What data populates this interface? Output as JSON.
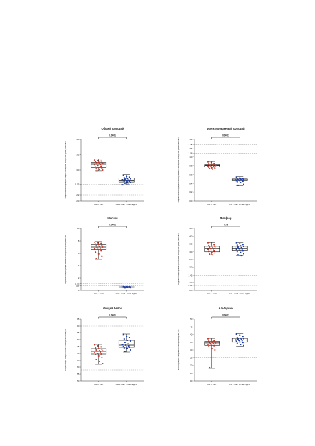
{
  "colors": {
    "group1": "#c0392b",
    "group2": "#1f3fa6",
    "axis": "#333333",
    "ref_line": "#9a9a9a"
  },
  "chart_data": [
    {
      "type": "box",
      "title": "Общий кальций",
      "ylabel": "Медиана концентрации общего кальция в сыворотке крови, ммоль/л",
      "categories": [
        "СН + CaP",
        "СН + CaP + Na2-ЭДТА"
      ],
      "ylim": [
        2.0,
        4.0
      ],
      "yticks": [
        "2.0",
        "2.2",
        "2.55",
        "3.0",
        "3.5",
        "4.0"
      ],
      "ref_lines": [
        2.2,
        2.55
      ],
      "pvalue": "0.0001",
      "series": [
        {
          "q1": 3.08,
          "median": 3.2,
          "q3": 3.26,
          "min": 2.98,
          "max": 3.36,
          "points": [
            3.33,
            3.31,
            3.3,
            3.28,
            3.26,
            3.25,
            3.24,
            3.22,
            3.21,
            3.2,
            3.19,
            3.17,
            3.15,
            3.12,
            3.1,
            3.08,
            3.06,
            3.04,
            3.02,
            3.0,
            2.98
          ]
        },
        {
          "q1": 2.62,
          "median": 2.66,
          "q3": 2.74,
          "min": 2.53,
          "max": 2.85,
          "points": [
            2.84,
            2.8,
            2.77,
            2.75,
            2.73,
            2.72,
            2.71,
            2.7,
            2.69,
            2.68,
            2.67,
            2.66,
            2.65,
            2.64,
            2.63,
            2.62,
            2.6,
            2.58,
            2.55,
            2.53
          ]
        }
      ]
    },
    {
      "type": "box",
      "title": "Ионизированный кальций",
      "ylabel": "Медиана концентрации ионизированного кальция в сыворотке крови, ммоль/л",
      "categories": [
        "СН + CaP",
        "СН + CaP + Na2-ЭДТА"
      ],
      "ylim": [
        0.0,
        1.4
      ],
      "yticks": [
        "0.0",
        "0.2",
        "0.4",
        "0.6",
        "0.8",
        "1.0",
        "1.08",
        "1.2",
        "1.28",
        "1.4"
      ],
      "ref_lines": [
        1.08,
        1.28
      ],
      "pvalue": "0.0001",
      "series": [
        {
          "q1": 0.77,
          "median": 0.8,
          "q3": 0.83,
          "min": 0.72,
          "max": 0.9,
          "points": [
            0.89,
            0.87,
            0.85,
            0.84,
            0.83,
            0.82,
            0.82,
            0.81,
            0.8,
            0.8,
            0.79,
            0.78,
            0.78,
            0.77,
            0.76,
            0.75,
            0.74,
            0.73,
            0.72
          ]
        },
        {
          "q1": 0.46,
          "median": 0.48,
          "q3": 0.5,
          "min": 0.35,
          "max": 0.55,
          "points": [
            0.54,
            0.52,
            0.51,
            0.5,
            0.5,
            0.49,
            0.49,
            0.48,
            0.48,
            0.47,
            0.47,
            0.46,
            0.46,
            0.45,
            0.44,
            0.42,
            0.38,
            0.36
          ]
        }
      ]
    },
    {
      "type": "box",
      "title": "Магния",
      "ylabel": "Медиана концентрации магния в сыворотке крови, ммоль/л",
      "categories": [
        "СН + CaP",
        "СН + CaP + Na2-ЭДТА"
      ],
      "ylim": [
        0,
        10
      ],
      "yticks": [
        "0",
        "0.7",
        "1.05",
        "2",
        "4",
        "6",
        "8",
        "10"
      ],
      "ref_lines": [
        0.7,
        1.05
      ],
      "pvalue": "0.0001",
      "series": [
        {
          "q1": 6.6,
          "median": 7.0,
          "q3": 7.4,
          "min": 5.0,
          "max": 7.9,
          "points": [
            7.8,
            7.7,
            7.6,
            7.5,
            7.4,
            7.3,
            7.2,
            7.1,
            7.0,
            6.9,
            6.8,
            6.7,
            6.6,
            6.4,
            6.2,
            5.9,
            5.5,
            5.1
          ]
        },
        {
          "q1": 0.45,
          "median": 0.5,
          "q3": 0.55,
          "min": 0.4,
          "max": 0.6,
          "points": [
            0.6,
            0.58,
            0.56,
            0.55,
            0.54,
            0.53,
            0.52,
            0.51,
            0.5,
            0.5,
            0.49,
            0.48,
            0.47,
            0.46,
            0.45,
            0.44,
            0.42,
            0.4
          ]
        }
      ]
    },
    {
      "type": "box",
      "title": "Фосфор",
      "ylabel": "Медиана концентрации фосфора в сыворотке крови, ммоль/л",
      "categories": [
        "СН + CaP",
        "СН + CaP + Na2-ЭДТА"
      ],
      "ylim": [
        0.5,
        4.5
      ],
      "yticks": [
        "0.5",
        "0.81",
        "1.0",
        "1.45",
        "2.0",
        "2.5",
        "3.0",
        "3.5",
        "4.0",
        "4.5"
      ],
      "ref_lines": [
        0.81,
        1.45
      ],
      "pvalue": "0.39",
      "series": [
        {
          "q1": 3.0,
          "median": 3.2,
          "q3": 3.35,
          "min": 2.8,
          "max": 3.6,
          "points": [
            3.58,
            3.5,
            3.45,
            3.4,
            3.36,
            3.33,
            3.3,
            3.25,
            3.22,
            3.2,
            3.18,
            3.15,
            3.1,
            3.05,
            3.02,
            2.98,
            2.92,
            2.85,
            2.8
          ]
        },
        {
          "q1": 3.05,
          "median": 3.2,
          "q3": 3.35,
          "min": 2.75,
          "max": 3.6,
          "points": [
            3.58,
            3.52,
            3.46,
            3.42,
            3.38,
            3.34,
            3.3,
            3.26,
            3.22,
            3.2,
            3.17,
            3.14,
            3.1,
            3.06,
            3.02,
            2.96,
            2.88,
            2.8,
            2.76
          ]
        }
      ]
    },
    {
      "type": "box",
      "title": "Общий белок",
      "ylabel": "Концентрация общего белка в сыворотке крови, г/л",
      "categories": [
        "СН + CaP",
        "СН + CaP + Na2-ЭДТА"
      ],
      "ylim": [
        50,
        95
      ],
      "yticks": [
        "50",
        "55",
        "60",
        "65",
        "70",
        "75",
        "80",
        "85",
        "90",
        "95"
      ],
      "ref_lines": [
        58,
        90
      ],
      "pvalue": "0.0001",
      "series": [
        {
          "q1": 69.5,
          "median": 71.5,
          "q3": 73.5,
          "min": 62.0,
          "max": 76.5,
          "points": [
            76.2,
            75.5,
            74.8,
            74.0,
            73.5,
            73.0,
            72.5,
            72.0,
            71.8,
            71.5,
            71.0,
            70.5,
            70.0,
            69.5,
            69.0,
            68.0,
            67.0,
            65.5,
            64.0,
            62.5
          ]
        },
        {
          "q1": 74.5,
          "median": 76.0,
          "q3": 79.5,
          "min": 71.0,
          "max": 84.0,
          "points": [
            83.8,
            82.5,
            81.5,
            80.5,
            79.5,
            79.0,
            78.0,
            77.0,
            76.5,
            76.0,
            75.5,
            75.0,
            74.8,
            74.5,
            74.0,
            73.5,
            72.5,
            71.5
          ]
        }
      ]
    },
    {
      "type": "box",
      "title": "Альбумин",
      "ylabel": "Концентрация альбумина в сыворотке крови, г/л",
      "categories": [
        "СН + CaP",
        "СН + CaP + Na2-ЭДТА"
      ],
      "ylim": [
        10,
        50
      ],
      "yticks": [
        "10",
        "15",
        "20",
        "25",
        "30",
        "35",
        "40",
        "45",
        "50"
      ],
      "ref_lines": [
        25,
        45
      ],
      "pvalue": "0.0001",
      "series": [
        {
          "q1": 33.0,
          "median": 34.5,
          "q3": 35.5,
          "min": 18.0,
          "max": 37.5,
          "points": [
            37.2,
            36.5,
            36.0,
            35.8,
            35.5,
            35.2,
            35.0,
            34.8,
            34.5,
            34.2,
            34.0,
            33.6,
            33.2,
            32.8,
            32.2,
            31.0,
            30.0,
            18.5
          ]
        },
        {
          "q1": 35.0,
          "median": 36.5,
          "q3": 37.5,
          "min": 32.5,
          "max": 40.5,
          "points": [
            40.2,
            39.5,
            38.8,
            38.0,
            37.6,
            37.3,
            37.0,
            36.8,
            36.5,
            36.2,
            36.0,
            35.6,
            35.2,
            34.8,
            34.2,
            33.5,
            32.8
          ]
        }
      ]
    }
  ]
}
